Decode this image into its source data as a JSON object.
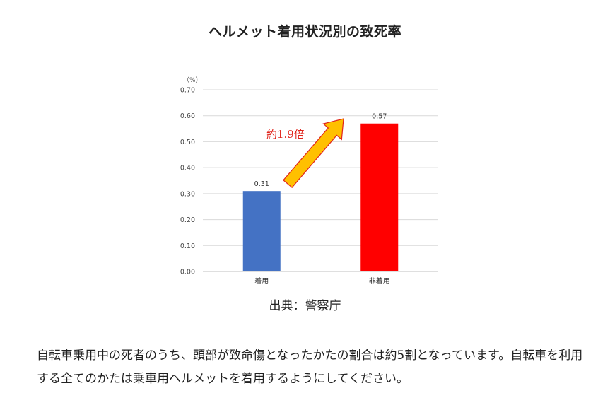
{
  "page": {
    "source": "出典：警察庁",
    "body_text": "自転車乗用中の死者のうち、頭部が致命傷となったかたの割合は約5割となっています。自転車を利用する全てのかたは乗車用ヘルメットを着用するようにしてください。"
  },
  "chart_data": {
    "type": "bar",
    "title": "ヘルメット着用状況別の致死率",
    "unit": "（%）",
    "categories": [
      "着用",
      "非着用"
    ],
    "values": [
      0.31,
      0.57
    ],
    "value_labels": [
      "0.31",
      "0.57"
    ],
    "bar_colors": [
      "#4472c4",
      "#ff0000"
    ],
    "ylim": [
      0,
      0.7
    ],
    "yticks": [
      0.0,
      0.1,
      0.2,
      0.3,
      0.4,
      0.5,
      0.6,
      0.7
    ],
    "ytick_labels": [
      "0.00",
      "0.10",
      "0.20",
      "0.30",
      "0.40",
      "0.50",
      "0.60",
      "0.70"
    ],
    "grid": true,
    "legend": "none",
    "annotation": {
      "text": "約1.9倍",
      "color": "#e0241b",
      "arrow_fill": "#ffc000",
      "arrow_stroke": "#e0241b"
    }
  }
}
